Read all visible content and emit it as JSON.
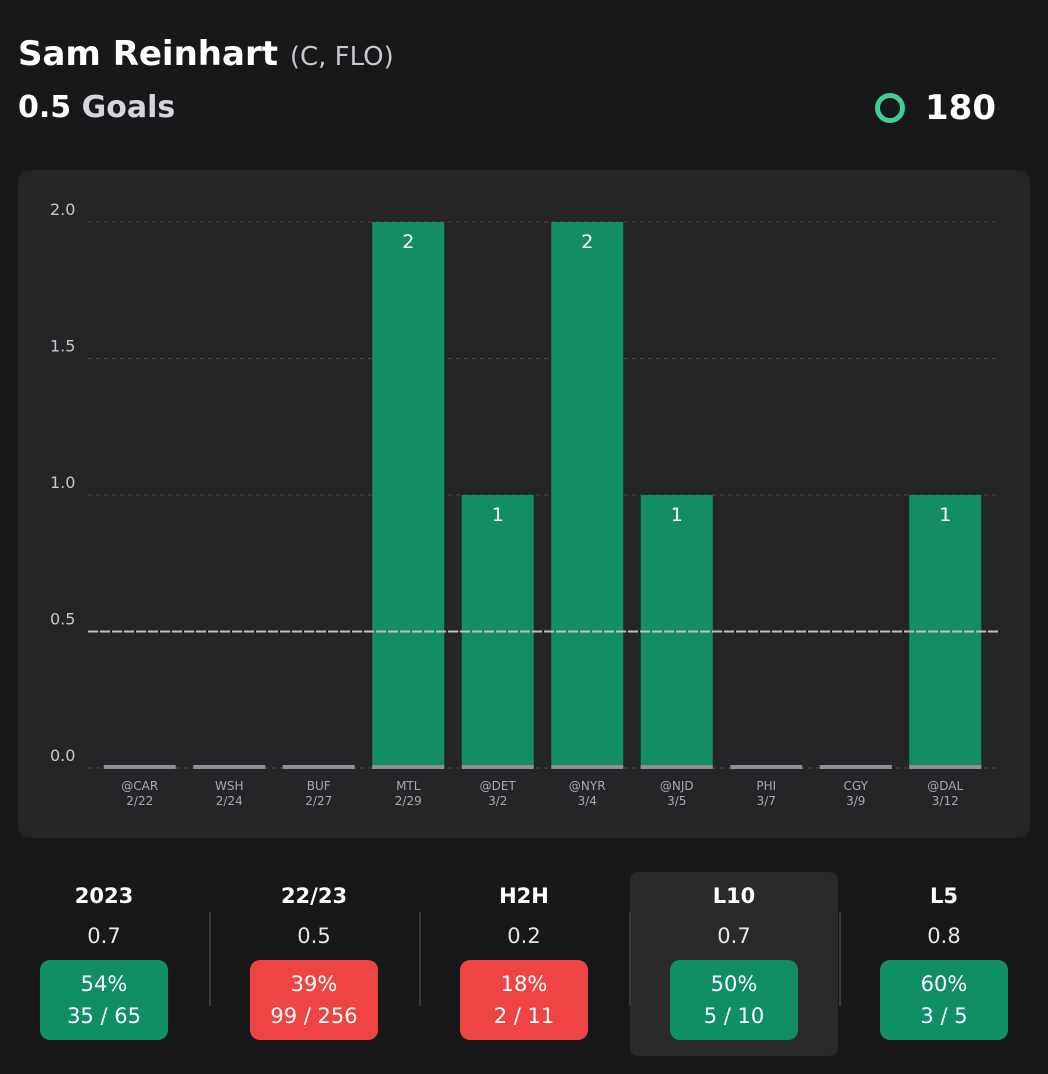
{
  "header": {
    "name": "Sam Reinhart",
    "position": "(C, FLO)",
    "line": 0.5,
    "stat": "Goals",
    "odds": "180"
  },
  "chart_data": {
    "type": "bar",
    "categories": [
      "@CAR",
      "WSH",
      "BUF",
      "MTL",
      "@DET",
      "@NYR",
      "@NJD",
      "PHI",
      "CGY",
      "@DAL"
    ],
    "dates": [
      "2/22",
      "2/24",
      "2/27",
      "2/29",
      "3/2",
      "3/4",
      "3/5",
      "3/7",
      "3/9",
      "3/12"
    ],
    "values": [
      0,
      0,
      0,
      2,
      1,
      2,
      1,
      0,
      0,
      1
    ],
    "color": "#138e62",
    "ylim": [
      0,
      2
    ],
    "yticks": [
      {
        "value": 0,
        "label": "0.0"
      },
      {
        "value": 0.5,
        "label": "0.5"
      },
      {
        "value": 1,
        "label": "1.0"
      },
      {
        "value": 1.5,
        "label": "1.5"
      },
      {
        "value": 2,
        "label": "2.0"
      }
    ],
    "grid": true
  },
  "tabs": [
    {
      "label": "2023",
      "average": "0.7",
      "hit_rate": "54%",
      "record": "35 / 65",
      "color": "#0f8f63",
      "selected": false
    },
    {
      "label": "22/23",
      "average": "0.5",
      "hit_rate": "39%",
      "record": "99 / 256",
      "color": "#ee4444",
      "selected": false
    },
    {
      "label": "H2H",
      "average": "0.2",
      "hit_rate": "18%",
      "record": "2 / 11",
      "color": "#ee4444",
      "selected": false
    },
    {
      "label": "L10",
      "average": "0.7",
      "hit_rate": "50%",
      "record": "5 / 10",
      "color": "#0f8f63",
      "selected": true
    },
    {
      "label": "L5",
      "average": "0.8",
      "hit_rate": "60%",
      "record": "3 / 5",
      "color": "#0f8f63",
      "selected": false
    }
  ]
}
